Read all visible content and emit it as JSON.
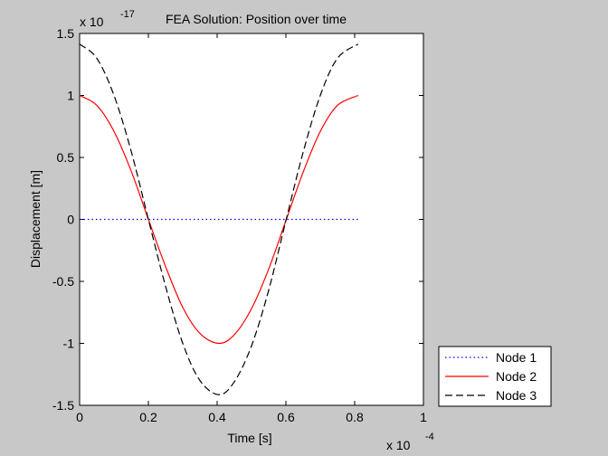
{
  "chart_data": {
    "type": "line",
    "title": "FEA Solution: Position over time",
    "xlabel": "Time [s]",
    "ylabel": "Displacement [m]",
    "x_exponent": {
      "base": "x 10",
      "power": "-4"
    },
    "y_exponent": {
      "base": "x 10",
      "power": "-17"
    },
    "xlim": [
      0,
      1
    ],
    "ylim": [
      -1.5,
      1.5
    ],
    "xticks": [
      0,
      0.2,
      0.4,
      0.6,
      0.8,
      1
    ],
    "yticks": [
      -1.5,
      -1,
      -0.5,
      0,
      0.5,
      1,
      1.5
    ],
    "xtick_labels": [
      "0",
      "0.2",
      "0.4",
      "0.6",
      "0.8",
      "1"
    ],
    "ytick_labels": [
      "-1.5",
      "-1",
      "-0.5",
      "0",
      "0.5",
      "1",
      "1.5"
    ],
    "grid": false,
    "legend_position": "outside-bottom-right",
    "series": [
      {
        "name": "Node 1",
        "color": "#0000ff",
        "style": "dotted",
        "x": [
          0,
          0.1,
          0.2,
          0.3,
          0.4,
          0.5,
          0.6,
          0.7,
          0.81
        ],
        "y": [
          0,
          0,
          0,
          0,
          0,
          0,
          0,
          0,
          0
        ]
      },
      {
        "name": "Node 2",
        "color": "#ff0000",
        "style": "solid",
        "x": [
          0,
          0.05,
          0.1,
          0.15,
          0.2,
          0.25,
          0.3,
          0.35,
          0.405,
          0.45,
          0.5,
          0.55,
          0.6,
          0.65,
          0.7,
          0.75,
          0.81
        ],
        "y": [
          1.0,
          0.92,
          0.71,
          0.39,
          0.0,
          -0.38,
          -0.71,
          -0.92,
          -1.0,
          -0.93,
          -0.72,
          -0.4,
          -0.01,
          0.38,
          0.71,
          0.92,
          1.0
        ]
      },
      {
        "name": "Node 3",
        "color": "#000000",
        "style": "dashed",
        "x": [
          0,
          0.05,
          0.1,
          0.15,
          0.2,
          0.25,
          0.3,
          0.35,
          0.405,
          0.45,
          0.5,
          0.55,
          0.6,
          0.65,
          0.7,
          0.75,
          0.81
        ],
        "y": [
          1.414,
          1.3,
          1.0,
          0.55,
          0.0,
          -0.54,
          -1.0,
          -1.3,
          -1.414,
          -1.31,
          -1.02,
          -0.57,
          -0.01,
          0.54,
          1.0,
          1.3,
          1.414
        ]
      }
    ]
  }
}
